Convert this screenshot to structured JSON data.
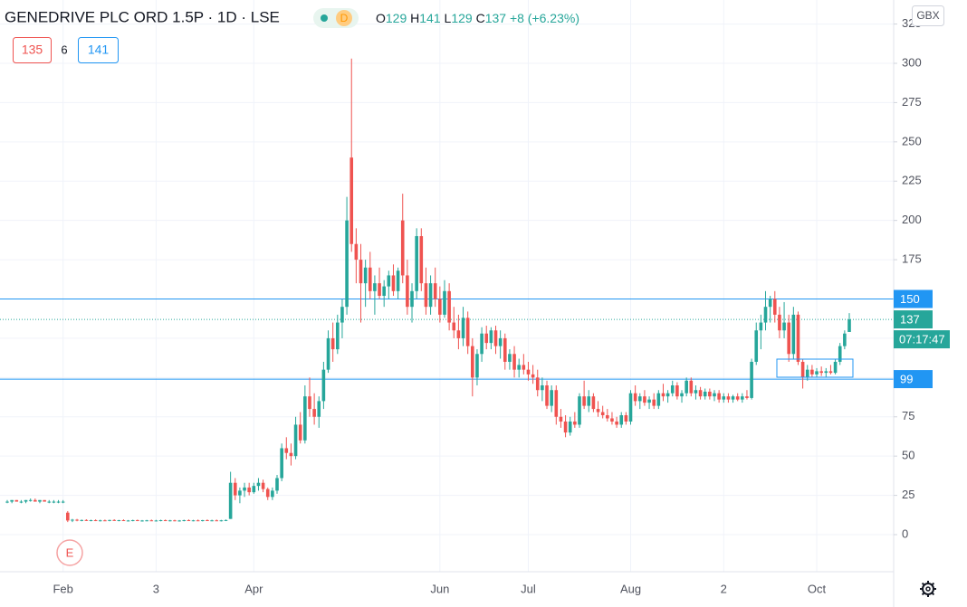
{
  "chart_data": {
    "type": "candlestick",
    "title": "GENEDRIVE PLC ORD 1.5P · 1D · LSE",
    "interval_badge": "D",
    "quote": [
      "O",
      "129",
      "H",
      "141",
      "L",
      "129",
      "C",
      "137",
      "+8 (+6.23%)"
    ],
    "bid_ask": [
      "135",
      "6",
      "141"
    ],
    "currency": "GBX",
    "event_marker": "E",
    "up_color": "#26a69a",
    "down_color": "#ef5350",
    "ylim": [
      -23.6,
      340.3
    ],
    "yticks": [
      0,
      25,
      50,
      75,
      100,
      125,
      150,
      175,
      200,
      225,
      250,
      275,
      300,
      325
    ],
    "grid": true,
    "countdown": "07:17:47",
    "hlines": [
      {
        "value": 150,
        "color": "#2196f3",
        "style": "solid"
      },
      {
        "value": 137,
        "color": "#26a69a",
        "style": "dotted"
      },
      {
        "value": 99,
        "color": "#2196f3",
        "style": "solid"
      }
    ],
    "categories": [
      null,
      null,
      null,
      null,
      null,
      null,
      null,
      null,
      null,
      null,
      null,
      null,
      "Feb",
      null,
      null,
      null,
      null,
      null,
      null,
      null,
      null,
      null,
      null,
      null,
      null,
      null,
      null,
      null,
      null,
      null,
      null,
      null,
      "3",
      null,
      null,
      null,
      null,
      null,
      null,
      null,
      null,
      null,
      null,
      null,
      null,
      null,
      null,
      null,
      null,
      null,
      null,
      null,
      null,
      "Apr",
      null,
      null,
      null,
      null,
      null,
      null,
      null,
      null,
      null,
      null,
      null,
      null,
      null,
      null,
      null,
      null,
      null,
      null,
      null,
      null,
      null,
      null,
      null,
      null,
      null,
      null,
      null,
      null,
      null,
      null,
      null,
      null,
      null,
      null,
      null,
      null,
      null,
      null,
      null,
      "Jun",
      null,
      null,
      null,
      null,
      null,
      null,
      null,
      null,
      null,
      null,
      null,
      null,
      null,
      null,
      null,
      null,
      null,
      null,
      "Jul",
      null,
      null,
      null,
      null,
      null,
      null,
      null,
      null,
      null,
      null,
      null,
      null,
      null,
      null,
      null,
      null,
      null,
      null,
      null,
      null,
      null,
      "Aug",
      null,
      null,
      null,
      null,
      null,
      null,
      null,
      null,
      null,
      null,
      null,
      null,
      null,
      null,
      null,
      null,
      null,
      null,
      null,
      "2",
      null,
      null,
      null,
      null,
      null,
      null,
      null,
      null,
      null,
      null,
      null,
      null,
      null,
      null,
      null,
      null,
      null,
      null,
      null,
      "Oct",
      null,
      null,
      null,
      null,
      null,
      null,
      null
    ],
    "ohlc": [
      [
        21,
        22,
        20,
        21
      ],
      [
        21,
        22,
        20,
        22
      ],
      [
        22,
        22,
        21,
        21
      ],
      [
        21,
        22,
        20,
        21
      ],
      [
        21,
        22,
        20,
        22
      ],
      [
        22,
        23,
        21,
        22
      ],
      [
        22,
        23,
        21,
        21
      ],
      [
        21,
        22,
        20,
        22
      ],
      [
        22,
        22,
        21,
        21
      ],
      [
        21,
        22,
        20,
        21
      ],
      [
        21,
        22,
        20,
        21
      ],
      [
        21,
        22,
        20,
        21
      ],
      [
        21,
        22,
        20,
        21
      ],
      [
        14,
        15,
        8,
        9
      ],
      [
        9,
        10,
        8,
        9.5
      ],
      [
        9.5,
        10,
        8.5,
        9
      ],
      [
        9,
        9.6,
        8.5,
        9.3
      ],
      [
        9.3,
        9.8,
        8.7,
        9
      ],
      [
        9,
        9.5,
        8.5,
        9.2
      ],
      [
        9.2,
        9.7,
        8.6,
        8.9
      ],
      [
        8.9,
        9.5,
        8.4,
        9.1
      ],
      [
        9.1,
        9.6,
        8.6,
        9
      ],
      [
        9,
        9.5,
        8.5,
        9.3
      ],
      [
        9.3,
        9.8,
        8.8,
        9
      ],
      [
        9,
        9.4,
        8.5,
        9.2
      ],
      [
        9.2,
        9.7,
        8.7,
        8.9
      ],
      [
        8.9,
        9.3,
        8.4,
        9
      ],
      [
        9,
        9.5,
        8.5,
        9.2
      ],
      [
        9.2,
        9.6,
        8.6,
        8.8
      ],
      [
        8.8,
        9.3,
        8.3,
        9
      ],
      [
        9,
        9.4,
        8.5,
        9.1
      ],
      [
        9.1,
        9.6,
        8.6,
        8.9
      ],
      [
        8.9,
        9.4,
        8.4,
        9
      ],
      [
        9,
        9.5,
        8.5,
        9.2
      ],
      [
        9.2,
        9.6,
        8.6,
        8.9
      ],
      [
        8.9,
        9.4,
        8.4,
        9.1
      ],
      [
        9.1,
        9.5,
        8.5,
        8.8
      ],
      [
        8.8,
        9.3,
        8.3,
        9
      ],
      [
        9,
        9.5,
        8.5,
        9.2
      ],
      [
        9.2,
        9.7,
        8.7,
        9
      ],
      [
        9,
        9.4,
        8.5,
        9.1
      ],
      [
        9.1,
        9.6,
        8.6,
        8.9
      ],
      [
        8.9,
        9.4,
        8.4,
        9.2
      ],
      [
        9.2,
        9.7,
        8.7,
        9
      ],
      [
        9,
        9.5,
        8.5,
        9.1
      ],
      [
        9.1,
        9.6,
        8.6,
        8.9
      ],
      [
        8.9,
        9.4,
        8.4,
        9.1
      ],
      [
        9.1,
        9.6,
        8.6,
        9.3
      ],
      [
        10,
        40,
        10,
        33
      ],
      [
        33,
        36,
        22,
        25
      ],
      [
        25,
        30,
        20,
        28
      ],
      [
        28,
        33,
        24,
        30
      ],
      [
        30,
        33,
        25,
        27
      ],
      [
        27,
        33,
        26,
        31
      ],
      [
        31,
        36,
        28,
        33
      ],
      [
        33,
        35,
        27,
        29
      ],
      [
        29,
        30,
        22,
        24
      ],
      [
        24,
        30,
        22,
        28
      ],
      [
        28,
        38,
        26,
        36
      ],
      [
        36,
        58,
        34,
        55
      ],
      [
        55,
        62,
        48,
        52
      ],
      [
        52,
        58,
        44,
        50
      ],
      [
        50,
        75,
        48,
        70
      ],
      [
        70,
        78,
        58,
        60
      ],
      [
        60,
        95,
        58,
        88
      ],
      [
        88,
        100,
        75,
        80
      ],
      [
        80,
        90,
        70,
        75
      ],
      [
        75,
        88,
        68,
        85
      ],
      [
        85,
        110,
        80,
        105
      ],
      [
        105,
        130,
        103,
        125
      ],
      [
        125,
        135,
        110,
        118
      ],
      [
        118,
        140,
        115,
        135
      ],
      [
        135,
        150,
        125,
        145
      ],
      [
        145,
        215,
        140,
        200
      ],
      [
        240,
        303,
        180,
        185
      ],
      [
        185,
        195,
        160,
        175
      ],
      [
        175,
        185,
        135,
        160
      ],
      [
        160,
        175,
        145,
        170
      ],
      [
        170,
        180,
        150,
        155
      ],
      [
        155,
        165,
        140,
        160
      ],
      [
        160,
        170,
        150,
        152
      ],
      [
        152,
        162,
        145,
        158
      ],
      [
        158,
        168,
        150,
        165
      ],
      [
        165,
        172,
        152,
        155
      ],
      [
        155,
        170,
        150,
        168
      ],
      [
        200,
        217,
        160,
        165
      ],
      [
        165,
        175,
        140,
        145
      ],
      [
        145,
        160,
        135,
        155
      ],
      [
        155,
        195,
        150,
        190
      ],
      [
        190,
        195,
        155,
        160
      ],
      [
        160,
        170,
        140,
        145
      ],
      [
        145,
        165,
        140,
        160
      ],
      [
        160,
        170,
        145,
        150
      ],
      [
        150,
        158,
        135,
        140
      ],
      [
        140,
        162,
        138,
        155
      ],
      [
        155,
        160,
        130,
        135
      ],
      [
        135,
        145,
        125,
        130
      ],
      [
        130,
        140,
        118,
        125
      ],
      [
        125,
        145,
        120,
        138
      ],
      [
        138,
        142,
        115,
        120
      ],
      [
        120,
        125,
        88,
        100
      ],
      [
        100,
        118,
        95,
        115
      ],
      [
        115,
        132,
        110,
        128
      ],
      [
        128,
        133,
        118,
        122
      ],
      [
        122,
        132,
        118,
        130
      ],
      [
        130,
        133,
        115,
        120
      ],
      [
        120,
        130,
        112,
        125
      ],
      [
        125,
        128,
        105,
        110
      ],
      [
        110,
        118,
        105,
        115
      ],
      [
        115,
        120,
        100,
        105
      ],
      [
        105,
        112,
        100,
        108
      ],
      [
        108,
        115,
        102,
        105
      ],
      [
        105,
        110,
        98,
        102
      ],
      [
        102,
        108,
        96,
        100
      ],
      [
        100,
        105,
        88,
        92
      ],
      [
        92,
        100,
        85,
        95
      ],
      [
        95,
        98,
        80,
        82
      ],
      [
        82,
        95,
        78,
        92
      ],
      [
        92,
        95,
        70,
        75
      ],
      [
        75,
        80,
        68,
        72
      ],
      [
        72,
        76,
        62,
        65
      ],
      [
        65,
        75,
        63,
        72
      ],
      [
        72,
        78,
        68,
        70
      ],
      [
        70,
        90,
        68,
        88
      ],
      [
        88,
        98,
        80,
        82
      ],
      [
        82,
        92,
        78,
        88
      ],
      [
        88,
        90,
        78,
        80
      ],
      [
        80,
        85,
        75,
        78
      ],
      [
        78,
        82,
        74,
        76
      ],
      [
        76,
        80,
        72,
        74
      ],
      [
        74,
        78,
        70,
        72
      ],
      [
        72,
        75,
        68,
        70
      ],
      [
        70,
        78,
        68,
        76
      ],
      [
        76,
        78,
        70,
        72
      ],
      [
        72,
        92,
        70,
        90
      ],
      [
        90,
        95,
        82,
        85
      ],
      [
        85,
        90,
        80,
        88
      ],
      [
        88,
        92,
        82,
        84
      ],
      [
        84,
        88,
        80,
        86
      ],
      [
        86,
        90,
        80,
        82
      ],
      [
        82,
        92,
        80,
        90
      ],
      [
        90,
        96,
        85,
        88
      ],
      [
        88,
        92,
        84,
        90
      ],
      [
        90,
        98,
        88,
        95
      ],
      [
        95,
        97,
        86,
        88
      ],
      [
        88,
        92,
        84,
        90
      ],
      [
        90,
        100,
        88,
        98
      ],
      [
        98,
        100,
        88,
        90
      ],
      [
        90,
        95,
        86,
        92
      ],
      [
        92,
        94,
        86,
        88
      ],
      [
        88,
        93,
        86,
        91
      ],
      [
        91,
        93,
        86,
        88
      ],
      [
        88,
        92,
        85,
        90
      ],
      [
        90,
        92,
        84,
        86
      ],
      [
        86,
        90,
        84,
        88
      ],
      [
        88,
        90,
        84,
        86
      ],
      [
        86,
        89,
        84,
        88
      ],
      [
        88,
        90,
        85,
        86
      ],
      [
        86,
        90,
        84,
        88
      ],
      [
        88,
        92,
        86,
        87
      ],
      [
        87,
        112,
        86,
        110
      ],
      [
        110,
        135,
        108,
        130
      ],
      [
        130,
        140,
        118,
        135
      ],
      [
        135,
        155,
        130,
        145
      ],
      [
        145,
        152,
        135,
        150
      ],
      [
        150,
        155,
        135,
        140
      ],
      [
        140,
        145,
        125,
        130
      ],
      [
        130,
        148,
        125,
        135
      ],
      [
        135,
        140,
        110,
        115
      ],
      [
        115,
        145,
        112,
        140
      ],
      [
        140,
        142,
        108,
        110
      ],
      [
        110,
        112,
        93,
        100
      ],
      [
        100,
        108,
        98,
        105
      ],
      [
        105,
        108,
        100,
        102
      ],
      [
        102,
        106,
        100,
        104
      ],
      [
        104,
        107,
        101,
        103
      ],
      [
        103,
        106,
        100,
        104
      ],
      [
        104,
        108,
        102,
        103
      ],
      [
        103,
        112,
        102,
        110
      ],
      [
        110,
        122,
        108,
        120
      ],
      [
        120,
        130,
        118,
        128
      ],
      [
        129,
        141,
        129,
        137
      ]
    ]
  }
}
